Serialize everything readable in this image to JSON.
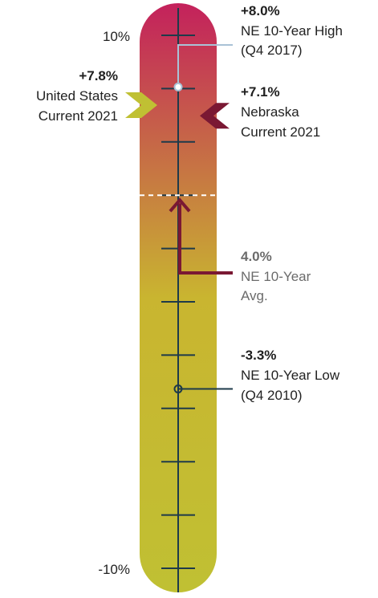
{
  "chart_data": {
    "type": "gauge",
    "axis": {
      "min": -10,
      "max": 10,
      "tick_step": 1,
      "label_top": "10%",
      "label_bottom": "-10%"
    },
    "gradient_colors": [
      "#C4215C",
      "#C9B530",
      "#C0C033"
    ],
    "colors": {
      "tick": "#1E3A4A",
      "high_line": "#A9C2D6",
      "avg_arrow": "#7A1833",
      "low_line": "#1E3A4A",
      "us_marker": "#C0C033",
      "ne_marker": "#7A1833",
      "midline": "#ffffff"
    },
    "markers": [
      {
        "id": "ne-high",
        "value": 8.0,
        "value_label": "+8.0%",
        "lines": [
          "NE 10-Year High",
          "(Q4 2017)"
        ],
        "value_color": "#1f1f1f"
      },
      {
        "id": "ne-current",
        "value": 7.1,
        "value_label": "+7.1%",
        "lines": [
          "Nebraska",
          "Current 2021"
        ],
        "value_color": "#1f1f1f"
      },
      {
        "id": "us-current",
        "value": 7.8,
        "value_label": "+7.8%",
        "lines": [
          "United States",
          "Current 2021"
        ],
        "value_color": "#1f1f1f"
      },
      {
        "id": "ne-avg",
        "value": 4.0,
        "value_label": "4.0%",
        "lines": [
          "NE 10-Year",
          "Avg."
        ],
        "value_color": "#6b6b6b"
      },
      {
        "id": "ne-low",
        "value": -3.3,
        "value_label": "-3.3%",
        "lines": [
          "NE 10-Year Low",
          "(Q4 2010)"
        ],
        "value_color": "#1f1f1f"
      }
    ]
  }
}
